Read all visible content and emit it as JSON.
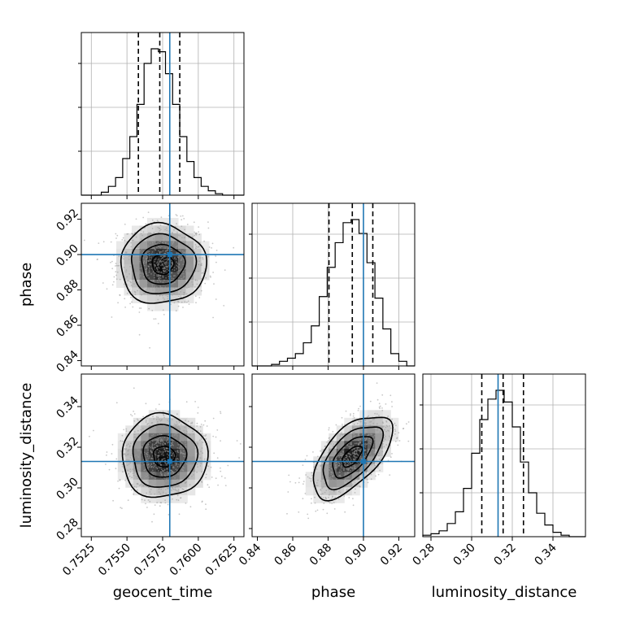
{
  "chart_data": {
    "type": "corner",
    "parameters": [
      "geocent_time",
      "phase",
      "luminosity_distance"
    ],
    "ranges": {
      "geocent_time": [
        0.7518,
        0.7632
      ],
      "phase": [
        0.837,
        0.929
      ],
      "luminosity_distance": [
        0.276,
        0.356
      ]
    },
    "ticks": {
      "geocent_time": [
        "0.7525",
        "0.7550",
        "0.7575",
        "0.7600",
        "0.7625"
      ],
      "phase": [
        "0.84",
        "0.86",
        "0.88",
        "0.90",
        "0.92"
      ],
      "luminosity_distance": [
        "0.28",
        "0.30",
        "0.32",
        "0.34"
      ]
    },
    "truths": {
      "geocent_time": 0.758,
      "phase": 0.9,
      "luminosity_distance": 0.313
    },
    "quantiles": {
      "geocent_time": [
        0.7558,
        0.7573,
        0.7587
      ],
      "phase": [
        0.8805,
        0.8937,
        0.9053
      ],
      "luminosity_distance": [
        0.305,
        0.3155,
        0.3255
      ]
    },
    "histograms": {
      "geocent_time": {
        "edges": [
          0.7518,
          0.7532,
          0.7537,
          0.7542,
          0.7547,
          0.7552,
          0.7557,
          0.7562,
          0.7567,
          0.7572,
          0.7577,
          0.7582,
          0.7587,
          0.7592,
          0.7597,
          0.7602,
          0.7607,
          0.7612,
          0.7617,
          0.7622,
          0.7632
        ],
        "counts": [
          0,
          2,
          6,
          12,
          25,
          40,
          62,
          90,
          100,
          98,
          83,
          62,
          40,
          23,
          12,
          6,
          3,
          1,
          0,
          0
        ]
      },
      "phase": {
        "edges": [
          0.837,
          0.848,
          0.8525,
          0.857,
          0.8615,
          0.866,
          0.8705,
          0.875,
          0.8795,
          0.884,
          0.8885,
          0.893,
          0.8975,
          0.902,
          0.9065,
          0.911,
          0.9155,
          0.92,
          0.9245,
          0.929
        ],
        "counts": [
          0,
          1,
          3,
          5,
          8,
          15,
          26,
          45,
          64,
          80,
          93,
          95,
          86,
          67,
          44,
          24,
          8,
          3,
          0
        ]
      },
      "luminosity_distance": {
        "edges": [
          0.276,
          0.28,
          0.284,
          0.288,
          0.292,
          0.296,
          0.3,
          0.304,
          0.308,
          0.312,
          0.316,
          0.32,
          0.324,
          0.328,
          0.332,
          0.336,
          0.34,
          0.344,
          0.348,
          0.352,
          0.356
        ],
        "counts": [
          1,
          2,
          4,
          9,
          17,
          33,
          57,
          80,
          94,
          100,
          92,
          75,
          51,
          30,
          16,
          8,
          3,
          1,
          0,
          0
        ]
      }
    },
    "pairs": [
      {
        "x": "geocent_time",
        "y": "phase",
        "center": [
          0.7575,
          0.8945
        ],
        "sigma": [
          0.0015,
          0.0112
        ],
        "rho": 0.0
      },
      {
        "x": "geocent_time",
        "y": "luminosity_distance",
        "center": [
          0.7576,
          0.3155
        ],
        "sigma": [
          0.0015,
          0.0102
        ],
        "rho": 0.0
      },
      {
        "x": "phase",
        "y": "luminosity_distance",
        "center": [
          0.8935,
          0.3155
        ],
        "sigma": [
          0.0112,
          0.0102
        ],
        "rho": 0.6
      }
    ],
    "contour_levels_sigma": [
      0.5,
      1.0,
      1.5,
      2.0
    ],
    "grid": true
  }
}
